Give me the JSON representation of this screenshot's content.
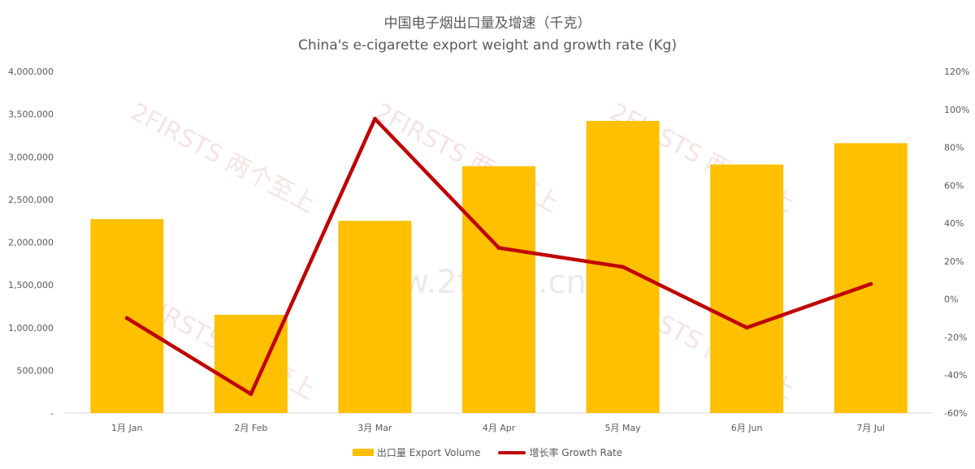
{
  "title": "中国电子烟出口量及增速（千克）",
  "subtitle": "China's e-cigarette export weight and growth rate (Kg)",
  "watermark": {
    "brand": "2FIRSTS 两个至上",
    "url": "www.2firsts.cn"
  },
  "colors": {
    "bar": "#FFC000",
    "line": "#C00000",
    "grid": "#d9d9d9",
    "text": "#595959"
  },
  "legend": [
    {
      "label": "出口量 Export Volume",
      "type": "bar"
    },
    {
      "label": "增长率 Growth Rate",
      "type": "line"
    }
  ],
  "chart_data": {
    "type": "bar",
    "categories": [
      "1月 Jan",
      "2月 Feb",
      "3月 Mar",
      "4月 Apr",
      "5月 May",
      "6月 Jun",
      "7月 Jul"
    ],
    "series": [
      {
        "name": "出口量 Export Volume",
        "type": "bar",
        "axis": "left",
        "values": [
          2270000,
          1150000,
          2250000,
          2890000,
          3420000,
          2910000,
          3160000
        ]
      },
      {
        "name": "增长率 Growth Rate",
        "type": "line",
        "axis": "right",
        "values": [
          -10,
          -50,
          95,
          27,
          17,
          -15,
          8
        ]
      }
    ],
    "y_left": {
      "ylim": [
        0,
        4000000
      ],
      "ticks": [
        "-",
        "500,000",
        "1,000,000",
        "1,500,000",
        "2,000,000",
        "2,500,000",
        "3,000,000",
        "3,500,000",
        "4,000,000"
      ]
    },
    "y_right": {
      "ylim": [
        -60,
        120
      ],
      "ticks": [
        "-60%",
        "-40%",
        "-20%",
        "0%",
        "20%",
        "40%",
        "60%",
        "80%",
        "100%",
        "120%"
      ]
    },
    "grid": false,
    "legend_position": "bottom"
  }
}
